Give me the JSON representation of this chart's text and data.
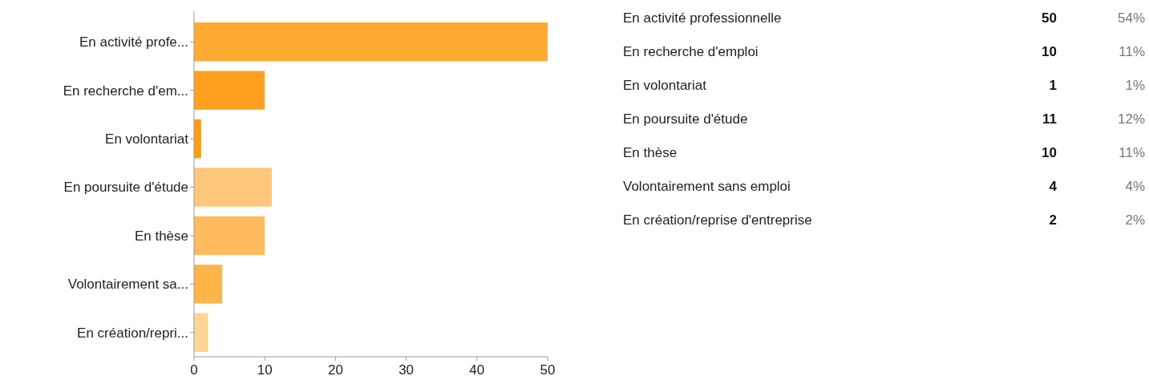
{
  "chart_data": {
    "type": "bar",
    "orientation": "horizontal",
    "categories": [
      "En activité profe...",
      "En recherche d'em...",
      "En volontariat",
      "En poursuite d'étude",
      "En thèse",
      "Volontairement sa...",
      "En création/repri..."
    ],
    "values": [
      50,
      10,
      1,
      11,
      10,
      4,
      2
    ],
    "colors": [
      "#ffaa33",
      "#ffa01f",
      "#ff9c12",
      "#ffc77a",
      "#ffbb5e",
      "#ffb547",
      "#ffd494"
    ],
    "xlim": [
      0,
      50
    ],
    "xticks": [
      0,
      10,
      20,
      30,
      40,
      50
    ],
    "annotations": [
      "En activité professionnelle",
      "En recherche d'emploi",
      "En volontariat",
      "En poursuite d'étude",
      "En thèse",
      "Volontairement sans emploi",
      "En création/reprise d'entreprise",
      "50",
      "10",
      "1",
      "11",
      "10",
      "4",
      "2",
      "54%",
      "11%",
      "1%",
      "12%",
      "11%",
      "4%",
      "2%"
    ]
  }
}
